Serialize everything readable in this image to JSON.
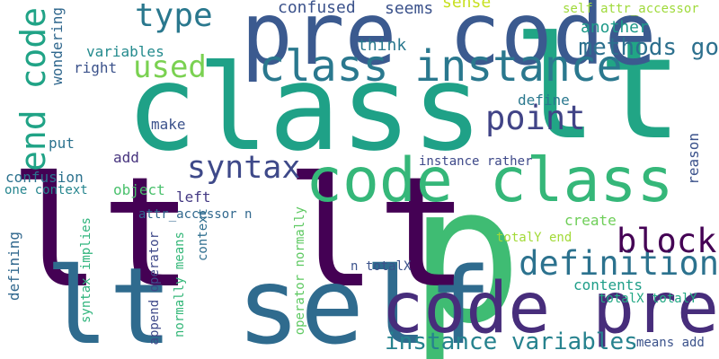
{
  "words": [
    {
      "text": "class",
      "color": "#1fa187"
    },
    {
      "text": "lt",
      "color": "#21a585"
    },
    {
      "text": "p",
      "color": "#3fbc73"
    },
    {
      "text": "lt lt",
      "color": "#440154"
    },
    {
      "text": "lt self",
      "color": "#2f6b8e"
    },
    {
      "text": "pre code",
      "color": "#3b5a8f"
    },
    {
      "text": "code class",
      "color": "#35b779"
    },
    {
      "text": "code pre",
      "color": "#472d7b"
    },
    {
      "text": "class instance",
      "color": "#2a788e"
    },
    {
      "text": "definition",
      "color": "#2c728e"
    },
    {
      "text": "block",
      "color": "#440154"
    },
    {
      "text": "syntax",
      "color": "#3e4989"
    },
    {
      "text": "point",
      "color": "#414487"
    },
    {
      "text": "type",
      "color": "#2a788e"
    },
    {
      "text": "used",
      "color": "#7ad151"
    },
    {
      "text": "end code",
      "color": "#20a386"
    },
    {
      "text": "methods go",
      "color": "#2d708e"
    },
    {
      "text": "instance variables",
      "color": "#26828e"
    },
    {
      "text": "confused",
      "color": "#3b528b"
    },
    {
      "text": "seems",
      "color": "#3b528b"
    },
    {
      "text": "sense",
      "color": "#c7e020"
    },
    {
      "text": "self attr_accessor",
      "color": "#9fda3a"
    },
    {
      "text": "another",
      "color": "#1f9a8a"
    },
    {
      "text": "think",
      "color": "#2a788e"
    },
    {
      "text": "variables",
      "color": "#238a8d"
    },
    {
      "text": "right",
      "color": "#3b528b"
    },
    {
      "text": "wondering",
      "color": "#31688e"
    },
    {
      "text": "define",
      "color": "#2a788e"
    },
    {
      "text": "make",
      "color": "#3b528b"
    },
    {
      "text": "put",
      "color": "#2c728e"
    },
    {
      "text": "add",
      "color": "#46337e"
    },
    {
      "text": "confusion",
      "color": "#2c728e"
    },
    {
      "text": "one context",
      "color": "#25858e"
    },
    {
      "text": "object",
      "color": "#4ac16d"
    },
    {
      "text": "left",
      "color": "#443983"
    },
    {
      "text": "instance rather",
      "color": "#3e4989"
    },
    {
      "text": "reason",
      "color": "#3b528b"
    },
    {
      "text": "create",
      "color": "#6ece58"
    },
    {
      "text": "attr_accessor n",
      "color": "#31688e"
    },
    {
      "text": "defining",
      "color": "#31688e"
    },
    {
      "text": "syntax implies",
      "color": "#2fb47c"
    },
    {
      "text": "append operator",
      "color": "#3e4989"
    },
    {
      "text": "normally means",
      "color": "#35b779"
    },
    {
      "text": "context",
      "color": "#2e6e8e"
    },
    {
      "text": "operator normally",
      "color": "#5ec962"
    },
    {
      "text": "n totalX",
      "color": "#3b528b"
    },
    {
      "text": "totalY end",
      "color": "#a2da37"
    },
    {
      "text": "contents",
      "color": "#1f9e89"
    },
    {
      "text": "totalX totalY",
      "color": "#22a884"
    },
    {
      "text": "means add",
      "color": "#3b528b"
    }
  ]
}
